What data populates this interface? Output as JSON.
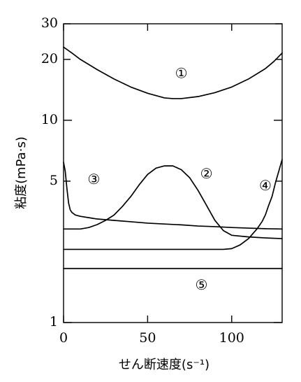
{
  "chart_data": {
    "type": "line",
    "title": "",
    "xlabel": "せん断速度(s⁻¹)",
    "ylabel": "粘度(mPa·s)",
    "xlim": [
      0,
      130
    ],
    "ylim": [
      1,
      30
    ],
    "y_scale": "log",
    "grid": false,
    "legend": "none",
    "x_ticks": [
      {
        "value": 0,
        "label": "0"
      },
      {
        "value": 50,
        "label": "50"
      },
      {
        "value": 100,
        "label": "100"
      }
    ],
    "y_ticks": [
      {
        "value": 1,
        "label": "1"
      },
      {
        "value": 5,
        "label": "5"
      },
      {
        "value": 10,
        "label": "10"
      },
      {
        "value": 20,
        "label": "20"
      },
      {
        "value": 30,
        "label": "30"
      }
    ],
    "series": [
      {
        "name": "①",
        "x": [
          0,
          5,
          10,
          20,
          30,
          40,
          50,
          60,
          65,
          70,
          80,
          90,
          100,
          110,
          120,
          125,
          130
        ],
        "y": [
          23,
          21.5,
          20,
          17.8,
          16,
          14.6,
          13.6,
          12.9,
          12.8,
          12.8,
          13.1,
          13.7,
          14.6,
          16,
          18,
          19.5,
          21.5
        ]
      },
      {
        "name": "②",
        "x": [
          0,
          10,
          15,
          20,
          25,
          30,
          35,
          40,
          45,
          50,
          55,
          60,
          65,
          70,
          75,
          80,
          85,
          90,
          95,
          100,
          110,
          120,
          130
        ],
        "y": [
          2.9,
          2.9,
          2.95,
          3.05,
          3.2,
          3.4,
          3.75,
          4.2,
          4.8,
          5.4,
          5.8,
          5.95,
          5.95,
          5.7,
          5.2,
          4.5,
          3.8,
          3.2,
          2.85,
          2.7,
          2.65,
          2.62,
          2.6
        ]
      },
      {
        "name": "③",
        "x": [
          0,
          1,
          2,
          3,
          4,
          5,
          7,
          10,
          15,
          20,
          30,
          40,
          50,
          60,
          70,
          80,
          90,
          100,
          110,
          120,
          130
        ],
        "y": [
          6.2,
          5.6,
          4.6,
          3.9,
          3.6,
          3.5,
          3.4,
          3.35,
          3.3,
          3.25,
          3.2,
          3.15,
          3.1,
          3.07,
          3.04,
          3.0,
          2.98,
          2.95,
          2.93,
          2.91,
          2.9
        ]
      },
      {
        "name": "④",
        "x": [
          0,
          20,
          40,
          60,
          80,
          95,
          100,
          105,
          110,
          115,
          118,
          120,
          122,
          124,
          126,
          128,
          130
        ],
        "y": [
          2.3,
          2.3,
          2.3,
          2.3,
          2.3,
          2.3,
          2.32,
          2.42,
          2.6,
          2.9,
          3.15,
          3.4,
          3.8,
          4.2,
          4.9,
          5.6,
          6.4
        ]
      },
      {
        "name": "⑤",
        "x": [
          0,
          130
        ],
        "y": [
          1.85,
          1.85
        ]
      }
    ]
  }
}
